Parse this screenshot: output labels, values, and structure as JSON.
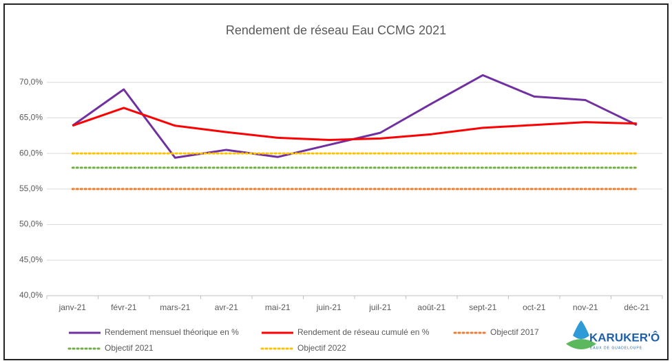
{
  "chart_data": {
    "type": "line",
    "title": "Rendement de réseau Eau CCMG 2021",
    "categories": [
      "janv-21",
      "févr-21",
      "mars-21",
      "avr-21",
      "mai-21",
      "juin-21",
      "juil-21",
      "août-21",
      "sept-21",
      "oct-21",
      "nov-21",
      "déc-21"
    ],
    "series": [
      {
        "name": "Rendement mensuel théorique en %",
        "color": "#7030a0",
        "style": "solid",
        "values": [
          63.9,
          69.0,
          59.4,
          60.5,
          59.5,
          61.2,
          62.9,
          67.0,
          71.0,
          68.0,
          67.5,
          64.0
        ]
      },
      {
        "name": "Rendement de réseau cumulé en %",
        "color": "#ff0000",
        "style": "solid",
        "values": [
          63.9,
          66.4,
          63.9,
          63.0,
          62.2,
          61.9,
          62.1,
          62.7,
          63.6,
          64.0,
          64.4,
          64.2
        ]
      },
      {
        "name": "Objectif 2017",
        "color": "#ed7d31",
        "style": "dotted",
        "values": [
          55,
          55,
          55,
          55,
          55,
          55,
          55,
          55,
          55,
          55,
          55,
          55
        ]
      },
      {
        "name": "Objectif 2021",
        "color": "#70ad47",
        "style": "dotted",
        "values": [
          58,
          58,
          58,
          58,
          58,
          58,
          58,
          58,
          58,
          58,
          58,
          58
        ]
      },
      {
        "name": "Objectif 2022",
        "color": "#ffc000",
        "style": "dotted",
        "values": [
          60,
          60,
          60,
          60,
          60,
          60,
          60,
          60,
          60,
          60,
          60,
          60
        ]
      }
    ],
    "ylim": [
      40,
      72
    ],
    "yticks": [
      {
        "value": 40,
        "label": "40,0%"
      },
      {
        "value": 45,
        "label": "45,0%"
      },
      {
        "value": 50,
        "label": "50,0%"
      },
      {
        "value": 55,
        "label": "55,0%"
      },
      {
        "value": 60,
        "label": "60,0%"
      },
      {
        "value": 65,
        "label": "65,0%"
      },
      {
        "value": 70,
        "label": "70,0%"
      }
    ],
    "grid": true,
    "legend": "bottom",
    "logo": {
      "name": "KARUKER'Ô",
      "tagline": "EAUX DE GUADELOUPE"
    }
  }
}
